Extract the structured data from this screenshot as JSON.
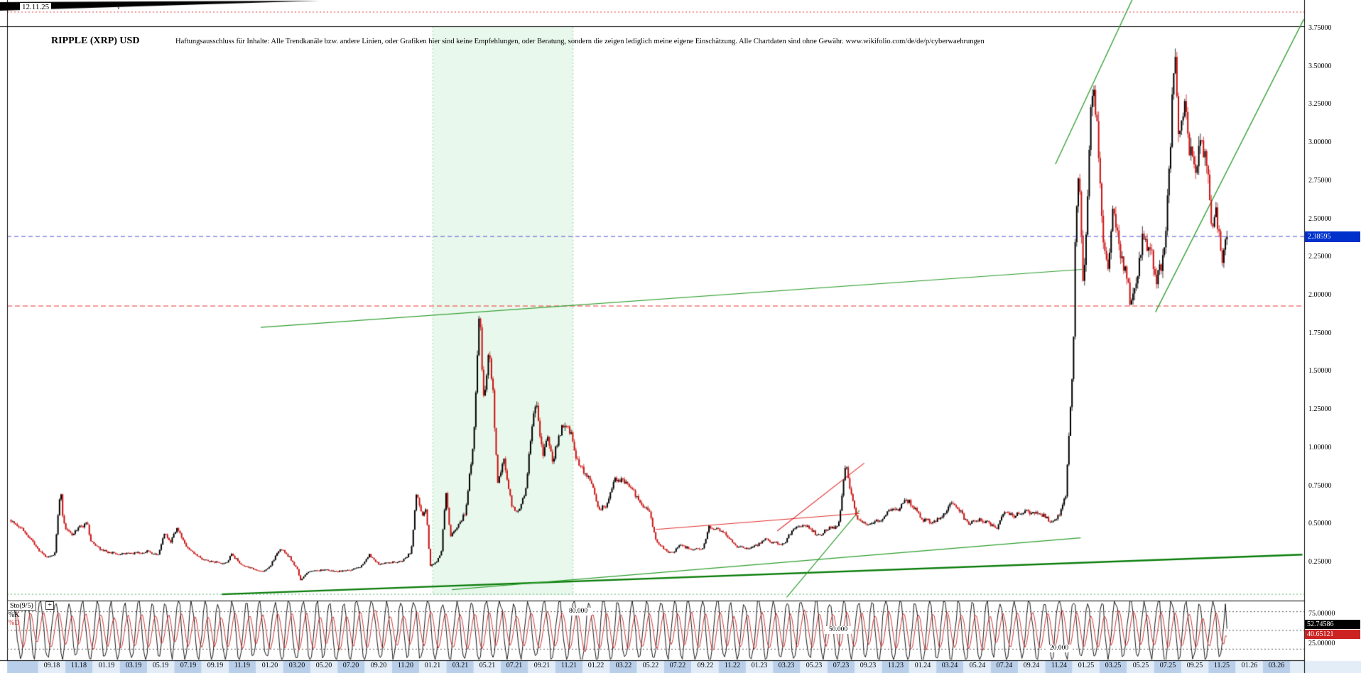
{
  "header": {
    "date_label": "12.11.25",
    "resize_icon": "↕"
  },
  "chart": {
    "title": "RIPPLE (XRP) USD",
    "disclaimer": "Haftungsausschluss für Inhalte: Alle Trendkanäle bzw. andere Linien, oder Grafiken hier sind keine Empfehlungen, oder Beratung, sondern die zeigen lediglich meine eigene Einschätzung. Alle Chartdaten sind ohne Gewähr.  www.wikifolio.com/de/de/p/cyberwaehrungen",
    "last_price": "2.38595"
  },
  "price_axis": {
    "labels": [
      "3.75000",
      "3.50000",
      "3.25000",
      "3.00000",
      "2.75000",
      "2.50000",
      "2.25000",
      "2.00000",
      "1.75000",
      "1.50000",
      "1.25000",
      "1.00000",
      "0.75000",
      "0.50000",
      "0.25000"
    ]
  },
  "time_axis": {
    "labels": [
      "09.18",
      "11.18",
      "01.19",
      "03.19",
      "05.19",
      "07.19",
      "09.19",
      "11.19",
      "01.20",
      "03.20",
      "05.20",
      "07.20",
      "09.20",
      "11.20",
      "01.21",
      "03.21",
      "05.21",
      "07.21",
      "09.21",
      "11.21",
      "01.22",
      "03.22",
      "05.22",
      "07.22",
      "09.22",
      "11.22",
      "01.23",
      "03.23",
      "05.23",
      "07.23",
      "09.23",
      "11.23",
      "01.24",
      "03.24",
      "05.24",
      "07.24",
      "09.24",
      "11.24",
      "01.25",
      "03.25",
      "05.25",
      "07.25",
      "09.25",
      "11.25",
      "01.26",
      "03.26"
    ]
  },
  "indicator": {
    "name_label": "Sto(9/5)",
    "expand_icon": "+",
    "k_label": "%K",
    "d_label": "%D",
    "k_value": "52.74586",
    "d_value": "40.65121",
    "axis_upper": "75.00000",
    "axis_lower": "25.00000",
    "guides": [
      {
        "text": "80.000",
        "value": 80,
        "t": 41.7
      },
      {
        "text": "50.000",
        "value": 50,
        "t": 60.8
      },
      {
        "text": "20.000",
        "value": 20,
        "t": 77.0
      }
    ]
  },
  "colors": {
    "up": "#000000",
    "down": "#cc1111",
    "price_badge_bg": "#0030cc",
    "k_badge_bg": "#000000",
    "d_badge_bg": "#cc2222",
    "date_row_a": "#e3edf8",
    "date_row_b": "#b9cfe9",
    "guide_line": "#555555",
    "border": "#000000"
  },
  "chart_data": {
    "type": "candlestick+stochastic",
    "title": "RIPPLE (XRP) USD",
    "x_unit": "months since 2018-06",
    "x_label_start": "09.18",
    "x_label_end": "03.26",
    "t_end": 89.4,
    "candle_step_months": 0.115,
    "last_close": 2.38595,
    "ylim": [
      0,
      3.94
    ],
    "price_anchors": [
      [
        0,
        0.53
      ],
      [
        1,
        0.45
      ],
      [
        2,
        0.33
      ],
      [
        2.6,
        0.28
      ],
      [
        3.2,
        0.3
      ],
      [
        3.65,
        0.75
      ],
      [
        3.8,
        0.55
      ],
      [
        4,
        0.47
      ],
      [
        4.5,
        0.43
      ],
      [
        5,
        0.48
      ],
      [
        5.6,
        0.5
      ],
      [
        5.9,
        0.38
      ],
      [
        6.5,
        0.34
      ],
      [
        7,
        0.32
      ],
      [
        8,
        0.3
      ],
      [
        9,
        0.31
      ],
      [
        10,
        0.32
      ],
      [
        10.8,
        0.3
      ],
      [
        11.3,
        0.44
      ],
      [
        11.7,
        0.38
      ],
      [
        12.2,
        0.47
      ],
      [
        12.6,
        0.4
      ],
      [
        13,
        0.34
      ],
      [
        14,
        0.27
      ],
      [
        15,
        0.25
      ],
      [
        15.8,
        0.24
      ],
      [
        16.2,
        0.3
      ],
      [
        17,
        0.23
      ],
      [
        18,
        0.2
      ],
      [
        18.6,
        0.19
      ],
      [
        19,
        0.22
      ],
      [
        19.8,
        0.34
      ],
      [
        20.5,
        0.28
      ],
      [
        21.05,
        0.2
      ],
      [
        21.25,
        0.13
      ],
      [
        21.6,
        0.17
      ],
      [
        22,
        0.19
      ],
      [
        23,
        0.2
      ],
      [
        24,
        0.19
      ],
      [
        25,
        0.2
      ],
      [
        25.7,
        0.22
      ],
      [
        26.3,
        0.3
      ],
      [
        27,
        0.24
      ],
      [
        28,
        0.25
      ],
      [
        28.8,
        0.26
      ],
      [
        29.4,
        0.32
      ],
      [
        29.8,
        0.7
      ],
      [
        30.2,
        0.55
      ],
      [
        30.5,
        0.6
      ],
      [
        30.8,
        0.22
      ],
      [
        31.3,
        0.26
      ],
      [
        31.6,
        0.3
      ],
      [
        31.95,
        0.72
      ],
      [
        32.3,
        0.42
      ],
      [
        32.8,
        0.48
      ],
      [
        33.4,
        0.58
      ],
      [
        34,
        1.05
      ],
      [
        34.45,
        1.93
      ],
      [
        34.7,
        1.3
      ],
      [
        35.1,
        1.62
      ],
      [
        35.4,
        1.4
      ],
      [
        35.75,
        0.75
      ],
      [
        36.2,
        0.95
      ],
      [
        36.8,
        0.62
      ],
      [
        37.3,
        0.58
      ],
      [
        37.8,
        0.72
      ],
      [
        38.3,
        1.15
      ],
      [
        38.6,
        1.28
      ],
      [
        39.1,
        0.95
      ],
      [
        39.4,
        1.08
      ],
      [
        39.8,
        0.9
      ],
      [
        40.3,
        1.1
      ],
      [
        40.9,
        1.18
      ],
      [
        41.5,
        0.95
      ],
      [
        42,
        0.85
      ],
      [
        42.6,
        0.78
      ],
      [
        43.2,
        0.6
      ],
      [
        43.8,
        0.62
      ],
      [
        44.3,
        0.8
      ],
      [
        45,
        0.78
      ],
      [
        45.7,
        0.72
      ],
      [
        46.3,
        0.62
      ],
      [
        46.9,
        0.58
      ],
      [
        47.4,
        0.4
      ],
      [
        48,
        0.33
      ],
      [
        48.6,
        0.31
      ],
      [
        49.2,
        0.36
      ],
      [
        50,
        0.34
      ],
      [
        50.8,
        0.33
      ],
      [
        51.3,
        0.48
      ],
      [
        51.9,
        0.47
      ],
      [
        52.5,
        0.44
      ],
      [
        53.2,
        0.36
      ],
      [
        54,
        0.34
      ],
      [
        54.8,
        0.36
      ],
      [
        55.3,
        0.4
      ],
      [
        56,
        0.38
      ],
      [
        56.8,
        0.37
      ],
      [
        57.4,
        0.46
      ],
      [
        58.2,
        0.5
      ],
      [
        58.8,
        0.46
      ],
      [
        59.4,
        0.42
      ],
      [
        60,
        0.47
      ],
      [
        60.8,
        0.48
      ],
      [
        61.35,
        0.9
      ],
      [
        61.7,
        0.7
      ],
      [
        62.2,
        0.52
      ],
      [
        63,
        0.5
      ],
      [
        63.8,
        0.52
      ],
      [
        64.5,
        0.58
      ],
      [
        65.2,
        0.6
      ],
      [
        65.8,
        0.66
      ],
      [
        66.4,
        0.61
      ],
      [
        67,
        0.53
      ],
      [
        67.8,
        0.51
      ],
      [
        68.4,
        0.56
      ],
      [
        69.1,
        0.63
      ],
      [
        69.8,
        0.58
      ],
      [
        70.3,
        0.5
      ],
      [
        71,
        0.53
      ],
      [
        71.8,
        0.51
      ],
      [
        72.4,
        0.47
      ],
      [
        73.1,
        0.59
      ],
      [
        73.7,
        0.55
      ],
      [
        74.3,
        0.58
      ],
      [
        75,
        0.58
      ],
      [
        75.8,
        0.56
      ],
      [
        76.4,
        0.52
      ],
      [
        77,
        0.55
      ],
      [
        77.5,
        0.68
      ],
      [
        77.8,
        1.15
      ],
      [
        78.05,
        1.55
      ],
      [
        78.25,
        2.55
      ],
      [
        78.5,
        2.85
      ],
      [
        78.75,
        2.05
      ],
      [
        79,
        2.35
      ],
      [
        79.3,
        3.15
      ],
      [
        79.6,
        3.35
      ],
      [
        79.9,
        2.95
      ],
      [
        80.2,
        2.45
      ],
      [
        80.6,
        2.15
      ],
      [
        81,
        2.55
      ],
      [
        81.4,
        2.35
      ],
      [
        81.9,
        2.15
      ],
      [
        82.3,
        1.95
      ],
      [
        82.7,
        2.1
      ],
      [
        83.2,
        2.4
      ],
      [
        83.7,
        2.3
      ],
      [
        84.2,
        2.1
      ],
      [
        84.7,
        2.25
      ],
      [
        85.1,
        2.8
      ],
      [
        85.5,
        3.6
      ],
      [
        85.8,
        3.0
      ],
      [
        86.2,
        3.3
      ],
      [
        86.6,
        2.95
      ],
      [
        87,
        2.85
      ],
      [
        87.5,
        3.05
      ],
      [
        87.9,
        2.8
      ],
      [
        88.3,
        2.4
      ],
      [
        88.6,
        2.55
      ],
      [
        89,
        2.2
      ],
      [
        89.2,
        2.3
      ],
      [
        89.4,
        2.386
      ]
    ],
    "trend_lines": [
      {
        "pts": [
          [
            18.35,
            1.79
          ],
          [
            78.7,
            2.17
          ]
        ],
        "color": "#2f9e2f",
        "w": 1.2
      },
      {
        "pts": [
          [
            15.5,
            0.04
          ],
          [
            94.9,
            0.3
          ]
        ],
        "color": "#0a7d0a",
        "w": 2.4
      },
      {
        "pts": [
          [
            32.4,
            0.07
          ],
          [
            78.6,
            0.41
          ]
        ],
        "color": "#2f9e2f",
        "w": 1.2
      },
      {
        "pts": [
          [
            76.75,
            2.86
          ],
          [
            82.45,
            3.95
          ]
        ],
        "color": "#2f9e2f",
        "w": 1.3
      },
      {
        "pts": [
          [
            84.1,
            1.89
          ],
          [
            95.0,
            3.81
          ]
        ],
        "color": "#2f9e2f",
        "w": 1.3
      },
      {
        "pts": [
          [
            57.0,
            0.02
          ],
          [
            62.35,
            0.59
          ]
        ],
        "color": "#2f9e2f",
        "w": 1.2
      },
      {
        "pts": [
          [
            47.4,
            0.465
          ],
          [
            62.35,
            0.57
          ]
        ],
        "color": "#e03030",
        "w": 1.1
      },
      {
        "pts": [
          [
            56.3,
            0.455
          ],
          [
            62.7,
            0.9
          ]
        ],
        "color": "#e03030",
        "w": 1.1
      }
    ],
    "h_lines": [
      {
        "price": 3.857,
        "color": "#ee3333",
        "dash": [
          2,
          3
        ],
        "w": 1
      },
      {
        "price": 1.93,
        "color": "#ee3333",
        "dash": [
          7,
          4
        ],
        "w": 1
      },
      {
        "price": 2.38595,
        "color": "#5050d8",
        "dash": [
          6,
          4
        ],
        "w": 1
      },
      {
        "price": 0.04,
        "color": "#59b86a",
        "dash": [
          2,
          3
        ],
        "w": 1
      }
    ],
    "region": {
      "t_from": 31.0,
      "t_to": 41.3,
      "fill": "#e9f8ec",
      "edge": "#8fd49f"
    },
    "stochastic": {
      "period_label": "Sto(9/5)",
      "k_last": 52.74586,
      "d_last": 40.65121,
      "guides": [
        80,
        50,
        20
      ],
      "range": [
        0,
        100
      ],
      "k_color": "#000000",
      "d_color": "#cc2222"
    }
  }
}
